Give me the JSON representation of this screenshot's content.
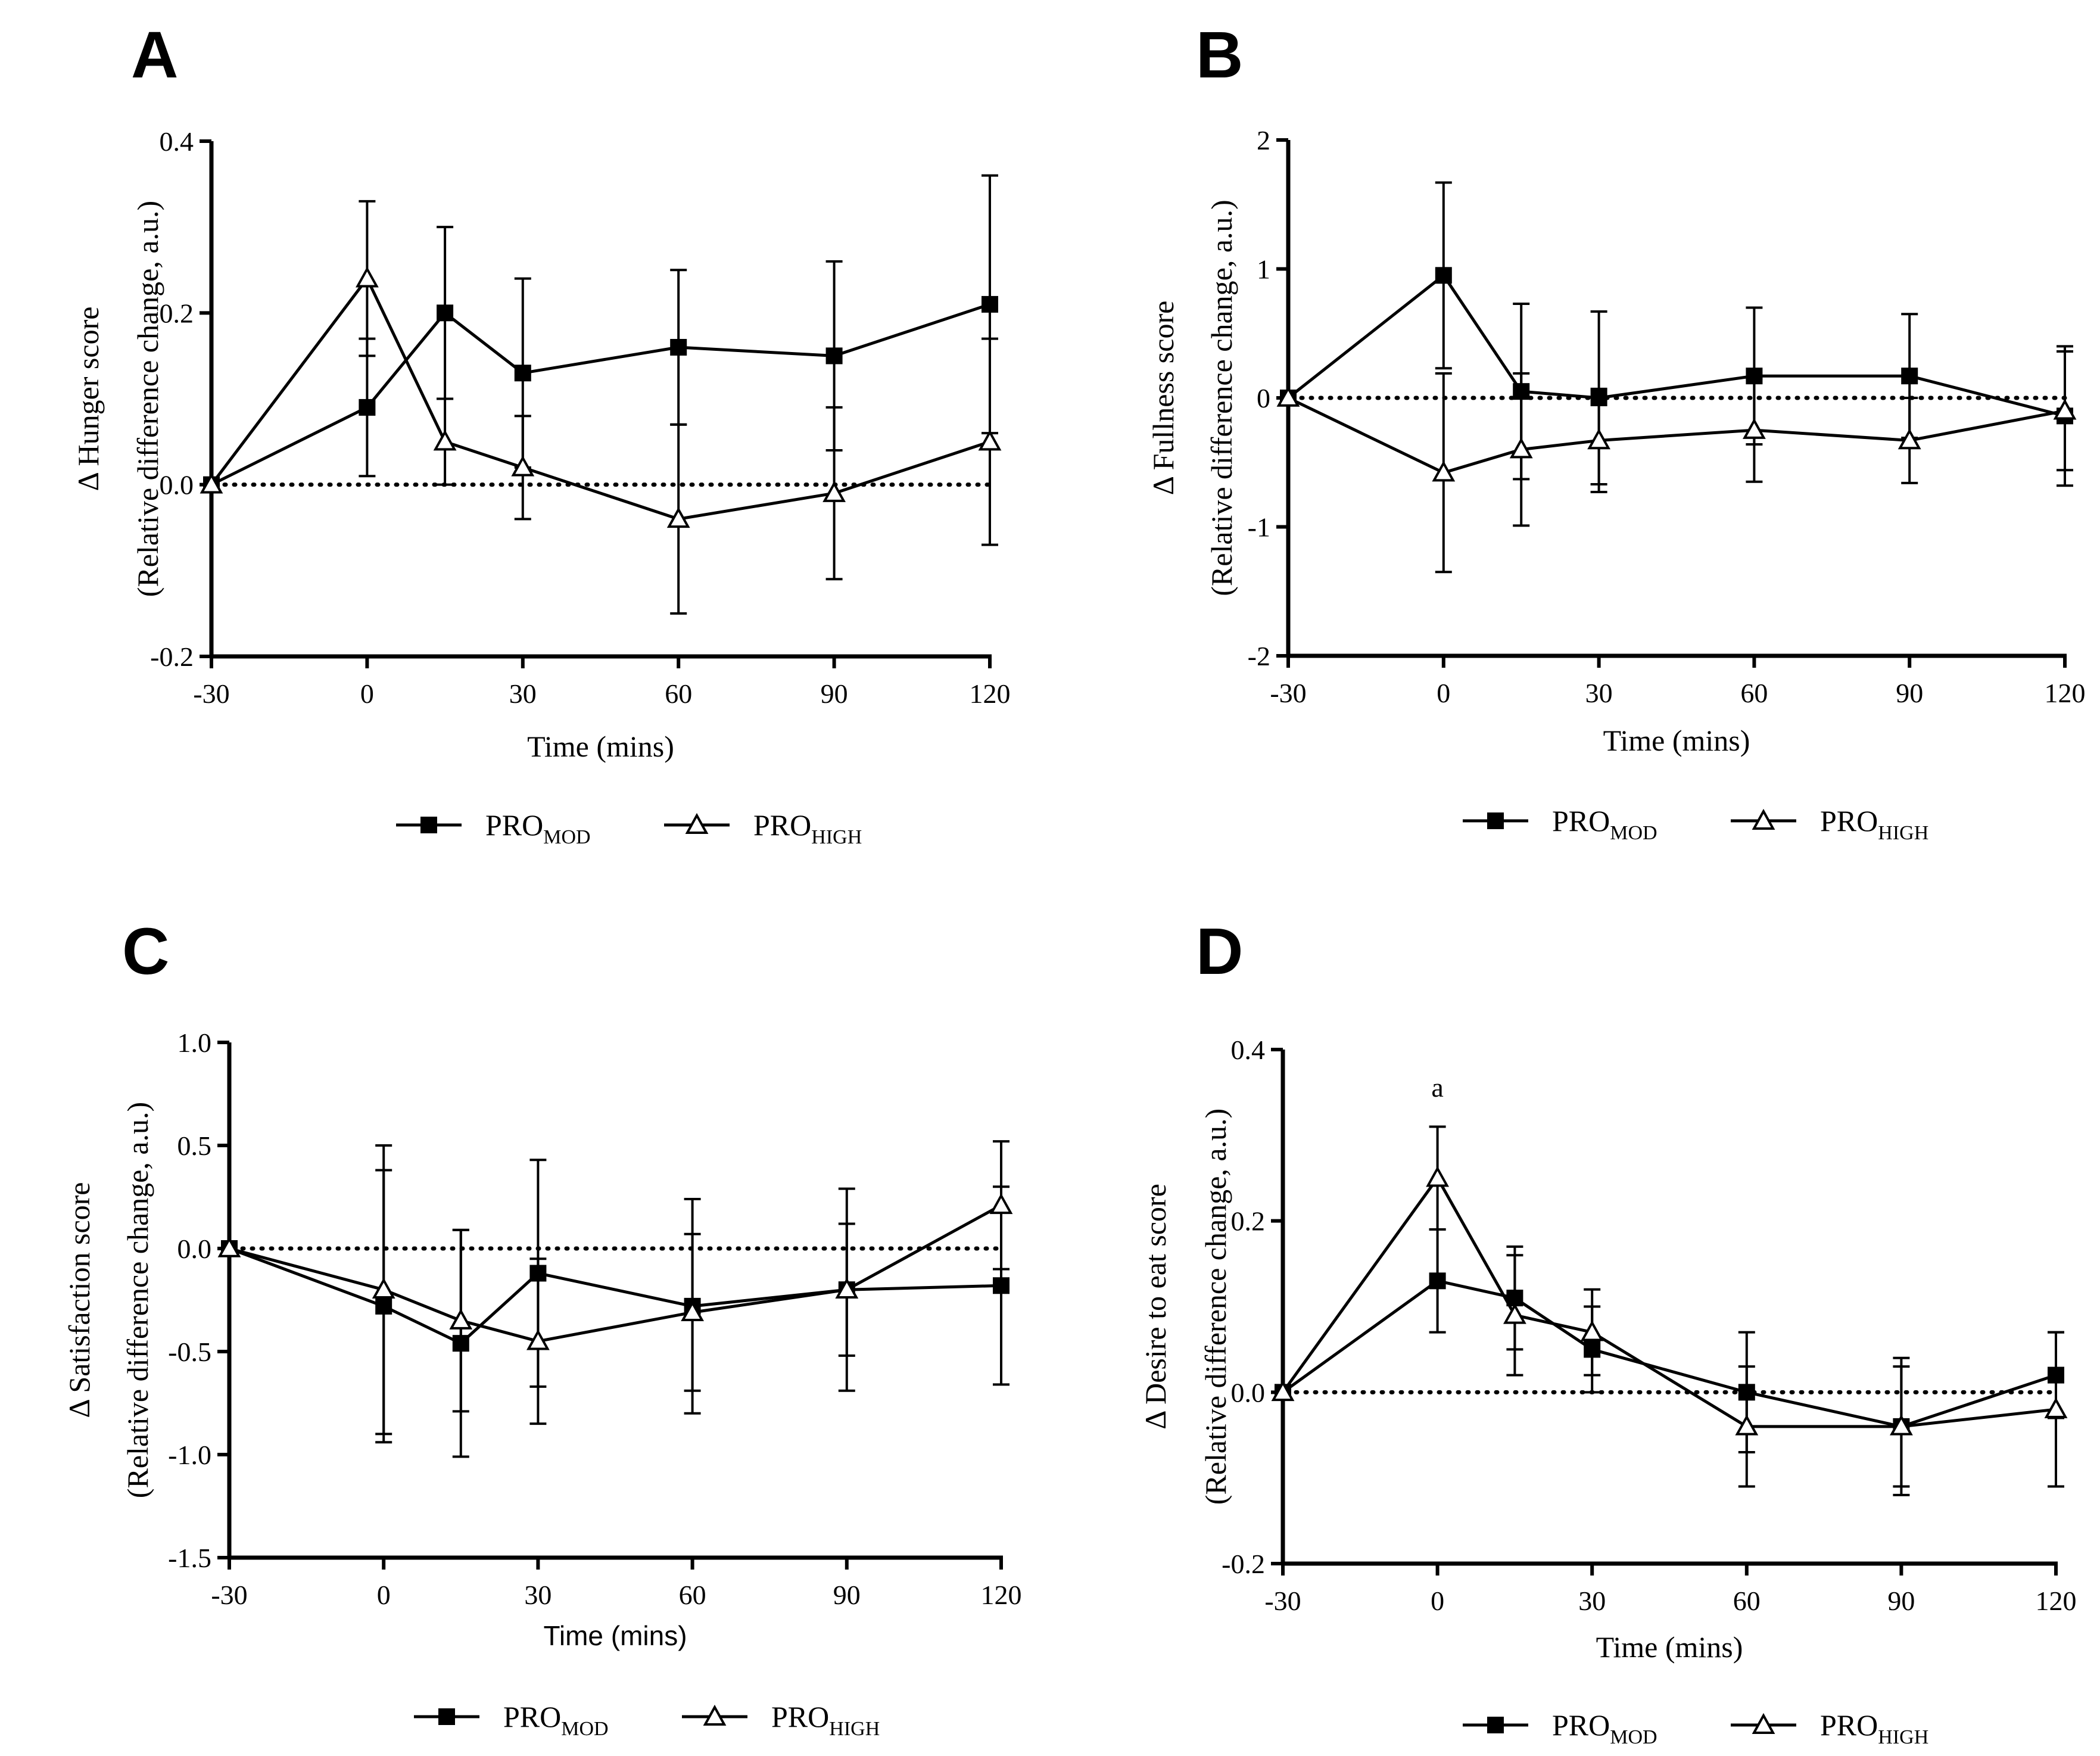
{
  "chart_data": [
    {
      "panel_letter": "A",
      "type": "line",
      "ylabel_line1": "Δ Hunger score",
      "ylabel_line2": "(Relative difference change, a.u.)",
      "xlabel": "Time (mins)",
      "xlabel_font": "serif",
      "ylim": [
        -0.2,
        0.4
      ],
      "yticks": [
        -0.2,
        0.0,
        0.2,
        0.4
      ],
      "ytick_labels": [
        "-0.2",
        "0.0",
        "0.2",
        "0.4"
      ],
      "xlim": [
        -30,
        120
      ],
      "xticks": [
        -30,
        0,
        30,
        60,
        90,
        120
      ],
      "xtick_labels": [
        "-30",
        "0",
        "30",
        "60",
        "90",
        "120"
      ],
      "reference_line": 0,
      "x": [
        -30,
        0,
        15,
        30,
        60,
        90,
        120
      ],
      "series": [
        {
          "name": "PRO",
          "subscript": "MOD",
          "marker": "filled-square",
          "values": [
            0,
            0.09,
            0.2,
            0.13,
            0.16,
            0.15,
            0.21
          ],
          "error": [
            0,
            0.08,
            0.1,
            0.11,
            0.09,
            0.11,
            0.15
          ]
        },
        {
          "name": "PRO",
          "subscript": "HIGH",
          "marker": "open-triangle",
          "values": [
            0,
            0.24,
            0.05,
            0.02,
            -0.04,
            -0.01,
            0.05
          ],
          "error": [
            0,
            0.09,
            0.05,
            0.06,
            0.11,
            0.1,
            0.12
          ]
        }
      ],
      "annotations": []
    },
    {
      "panel_letter": "B",
      "type": "line",
      "ylabel_line1": "Δ Fullness score",
      "ylabel_line2": "(Relative difference change, a.u.)",
      "xlabel": "Time (mins)",
      "xlabel_font": "serif",
      "ylim": [
        -2,
        2
      ],
      "yticks": [
        -2,
        -1,
        0,
        1,
        2
      ],
      "ytick_labels": [
        "-2",
        "-1",
        "0",
        "1",
        "2"
      ],
      "xlim": [
        -30,
        120
      ],
      "xticks": [
        -30,
        0,
        30,
        60,
        90,
        120
      ],
      "xtick_labels": [
        "-30",
        "0",
        "30",
        "60",
        "90",
        "120"
      ],
      "reference_line": 0,
      "x": [
        -30,
        0,
        15,
        30,
        60,
        90,
        120
      ],
      "series": [
        {
          "name": "PRO",
          "subscript": "MOD",
          "marker": "filled-square",
          "values": [
            0,
            0.95,
            0.05,
            0,
            0.17,
            0.17,
            -0.14
          ],
          "error": [
            0,
            0.72,
            0.68,
            0.67,
            0.53,
            0.48,
            0.54
          ]
        },
        {
          "name": "PRO",
          "subscript": "HIGH",
          "marker": "open-triangle",
          "values": [
            0,
            -0.58,
            -0.4,
            -0.33,
            -0.25,
            -0.33,
            -0.1
          ],
          "error": [
            0,
            0.77,
            0.59,
            0.4,
            0.4,
            0.33,
            0.46
          ]
        }
      ],
      "annotations": []
    },
    {
      "panel_letter": "C",
      "type": "line",
      "ylabel_line1": "Δ Satisfaction score",
      "ylabel_line2": "(Relative difference change, a.u.)",
      "xlabel": "Time (mins)",
      "xlabel_font": "sans",
      "ylim": [
        -1.5,
        1.0
      ],
      "yticks": [
        -1.5,
        -1.0,
        -0.5,
        0.0,
        0.5,
        1.0
      ],
      "ytick_labels": [
        "-1.5",
        "-1.0",
        "-0.5",
        "0.0",
        "0.5",
        "1.0"
      ],
      "xlim": [
        -30,
        120
      ],
      "xticks": [
        -30,
        0,
        30,
        60,
        90,
        120
      ],
      "xtick_labels": [
        "-30",
        "0",
        "30",
        "60",
        "90",
        "120"
      ],
      "reference_line": 0,
      "x": [
        -30,
        0,
        15,
        30,
        60,
        90,
        120
      ],
      "series": [
        {
          "name": "PRO",
          "subscript": "MOD",
          "marker": "filled-square",
          "values": [
            0,
            -0.28,
            -0.46,
            -0.12,
            -0.28,
            -0.2,
            -0.18
          ],
          "error": [
            0,
            0.66,
            0.55,
            0.55,
            0.52,
            0.49,
            0.48
          ]
        },
        {
          "name": "PRO",
          "subscript": "HIGH",
          "marker": "open-triangle",
          "values": [
            0,
            -0.2,
            -0.35,
            -0.45,
            -0.31,
            -0.2,
            0.21
          ],
          "error": [
            0,
            0.7,
            0.44,
            0.4,
            0.38,
            0.32,
            0.31
          ]
        }
      ],
      "annotations": []
    },
    {
      "panel_letter": "D",
      "type": "line",
      "ylabel_line1": "Δ Desire to eat score",
      "ylabel_line2": "(Relative difference change, a.u.)",
      "xlabel": "Time (mins)",
      "xlabel_font": "serif",
      "ylim": [
        -0.2,
        0.4
      ],
      "yticks": [
        -0.2,
        0.0,
        0.2,
        0.4
      ],
      "ytick_labels": [
        "-0.2",
        "0.0",
        "0.2",
        "0.4"
      ],
      "xlim": [
        -30,
        120
      ],
      "xticks": [
        -30,
        0,
        30,
        60,
        90,
        120
      ],
      "xtick_labels": [
        "-30",
        "0",
        "30",
        "60",
        "90",
        "120"
      ],
      "reference_line": 0,
      "x": [
        -30,
        0,
        15,
        30,
        60,
        90,
        120
      ],
      "series": [
        {
          "name": "PRO",
          "subscript": "MOD",
          "marker": "filled-square",
          "values": [
            0,
            0.13,
            0.11,
            0.05,
            0,
            -0.04,
            0.02
          ],
          "error": [
            0,
            0.06,
            0.06,
            0.05,
            0.07,
            0.08,
            0.05
          ]
        },
        {
          "name": "PRO",
          "subscript": "HIGH",
          "marker": "open-triangle",
          "values": [
            0,
            0.25,
            0.09,
            0.07,
            -0.04,
            -0.04,
            -0.02
          ],
          "error": [
            0,
            0.06,
            0.07,
            0.05,
            0.07,
            0.07,
            0.09
          ]
        }
      ],
      "annotations": [
        {
          "text": "a",
          "x": 0,
          "y": 0.345
        }
      ]
    }
  ]
}
